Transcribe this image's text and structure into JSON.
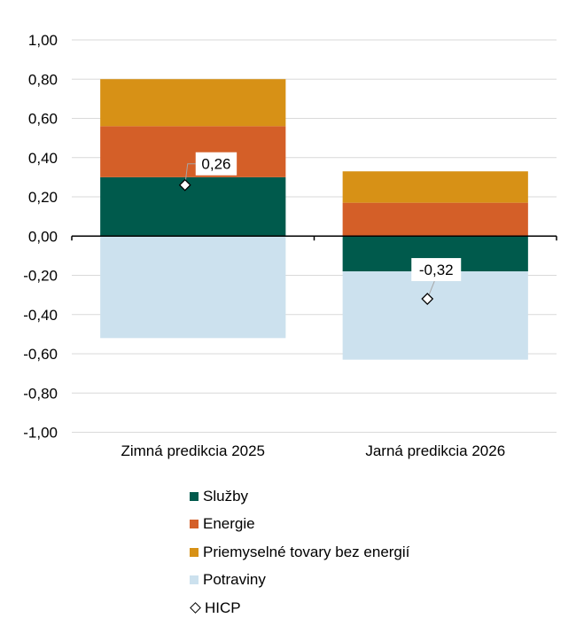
{
  "chart_data": {
    "type": "bar",
    "stacked": true,
    "title": "",
    "xlabel": "",
    "ylabel": "",
    "categories": [
      "Zimná predikcia 2025",
      "Jarná predikcia 2026"
    ],
    "ylim": [
      -1.0,
      1.0
    ],
    "yticks": [
      1.0,
      0.8,
      0.6,
      0.4,
      0.2,
      0.0,
      -0.2,
      -0.4,
      -0.6,
      -0.8,
      -1.0
    ],
    "ytick_labels": [
      "1,00",
      "0,80",
      "0,60",
      "0,40",
      "0,20",
      "0,00",
      "-0,20",
      "-0,40",
      "-0,60",
      "-0,80",
      "-1,00"
    ],
    "grid": true,
    "legend_position": "bottom",
    "series": [
      {
        "name": "Služby",
        "color": "#005A4C",
        "values": [
          0.3,
          -0.18
        ]
      },
      {
        "name": "Energie",
        "color": "#D45F28",
        "values": [
          0.26,
          0.17
        ]
      },
      {
        "name": "Priemyselné tovary bez energií",
        "color": "#D79116",
        "values": [
          0.24,
          0.16
        ]
      },
      {
        "name": "Potraviny",
        "color": "#CCE1EE",
        "values": [
          -0.52,
          -0.45
        ]
      }
    ],
    "markers": {
      "name": "HICP",
      "shape": "diamond",
      "values": [
        0.26,
        -0.32
      ],
      "labels": [
        "0,26",
        "-0,32"
      ]
    }
  },
  "legend": {
    "items": [
      {
        "label": "Služby",
        "color": "#005A4C",
        "kind": "square"
      },
      {
        "label": "Energie",
        "color": "#D45F28",
        "kind": "square"
      },
      {
        "label": "Priemyselné tovary bez energií",
        "color": "#D79116",
        "kind": "square"
      },
      {
        "label": "Potraviny",
        "color": "#CCE1EE",
        "kind": "square"
      },
      {
        "label": "HICP",
        "color": "#ffffff",
        "kind": "diamond"
      }
    ]
  }
}
